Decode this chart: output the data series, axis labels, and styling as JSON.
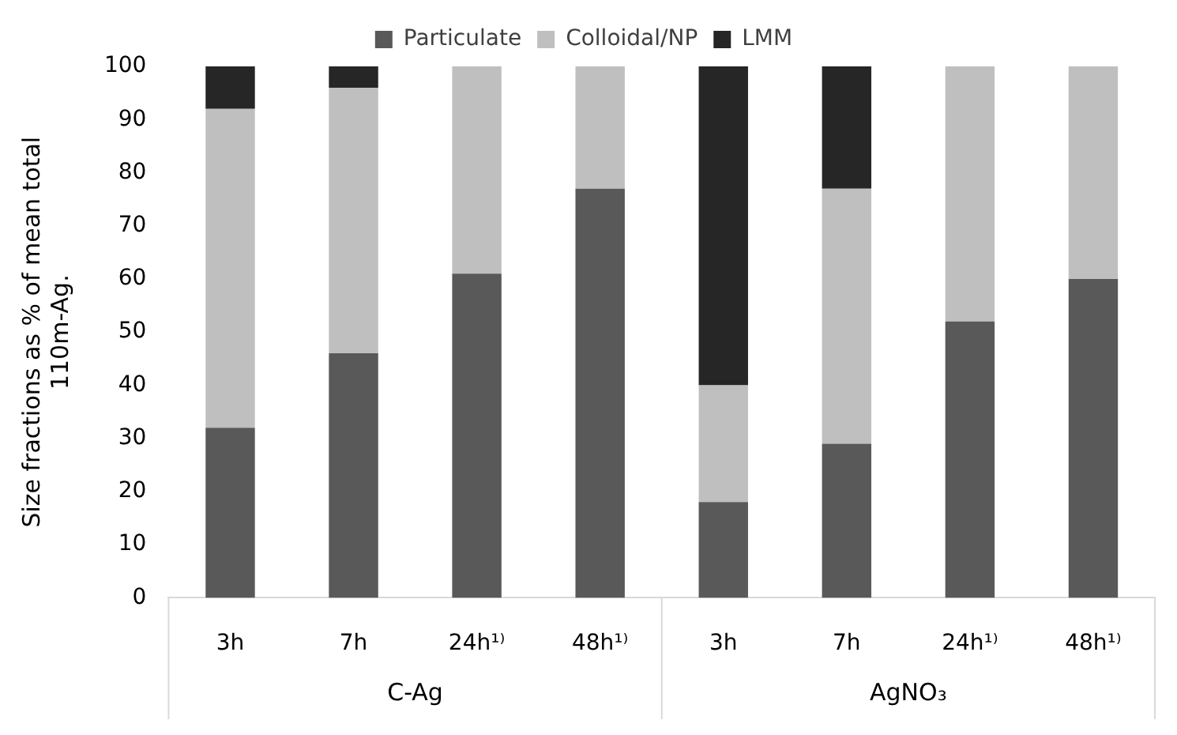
{
  "chart_data": {
    "type": "bar",
    "stacked": true,
    "ylabel": "Size fractions as % of mean total 110m-Ag.",
    "categories": [
      "3h",
      "7h",
      "24h¹⁾",
      "48h¹⁾",
      "3h",
      "7h",
      "24h¹⁾",
      "48h¹⁾"
    ],
    "series": [
      {
        "name": "Particulate",
        "color": "#595959",
        "values": [
          32,
          46,
          61,
          77,
          18,
          29,
          52,
          60
        ]
      },
      {
        "name": "Colloidal/NP",
        "color": "#bfbfbf",
        "values": [
          60,
          50,
          39,
          23,
          22,
          48,
          48,
          40
        ]
      },
      {
        "name": "LMM",
        "color": "#262626",
        "values": [
          8,
          4,
          0,
          0,
          60,
          23,
          0,
          0
        ]
      }
    ],
    "ylim": [
      0,
      100
    ],
    "yticks": [
      0,
      10,
      20,
      30,
      40,
      50,
      60,
      70,
      80,
      90,
      100
    ],
    "grid": false,
    "legend": "top",
    "annotations": [
      "C-Ag",
      "AgNO₃"
    ]
  }
}
